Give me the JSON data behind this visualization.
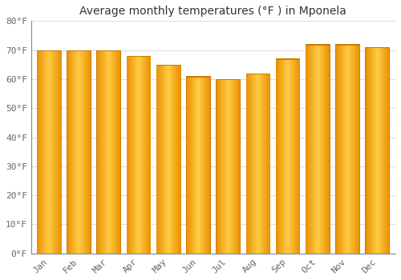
{
  "title": "Average monthly temperatures (°F ) in Mponela",
  "months": [
    "Jan",
    "Feb",
    "Mar",
    "Apr",
    "May",
    "Jun",
    "Jul",
    "Aug",
    "Sep",
    "Oct",
    "Nov",
    "Dec"
  ],
  "values": [
    70,
    70,
    70,
    68,
    65,
    61,
    60,
    62,
    67,
    72,
    72,
    71
  ],
  "ylim": [
    0,
    80
  ],
  "yticks": [
    0,
    10,
    20,
    30,
    40,
    50,
    60,
    70,
    80
  ],
  "ytick_labels": [
    "0°F",
    "10°F",
    "20°F",
    "30°F",
    "40°F",
    "50°F",
    "60°F",
    "70°F",
    "80°F"
  ],
  "background_color": "#FFFFFF",
  "grid_color": "#DDDDDD",
  "bar_left_color": "#E89000",
  "bar_mid_color": "#FFCC44",
  "bar_right_color": "#E89000",
  "bar_edge_color": "#CC8000",
  "title_fontsize": 10,
  "tick_fontsize": 8,
  "tick_color": "#666666",
  "title_color": "#333333"
}
